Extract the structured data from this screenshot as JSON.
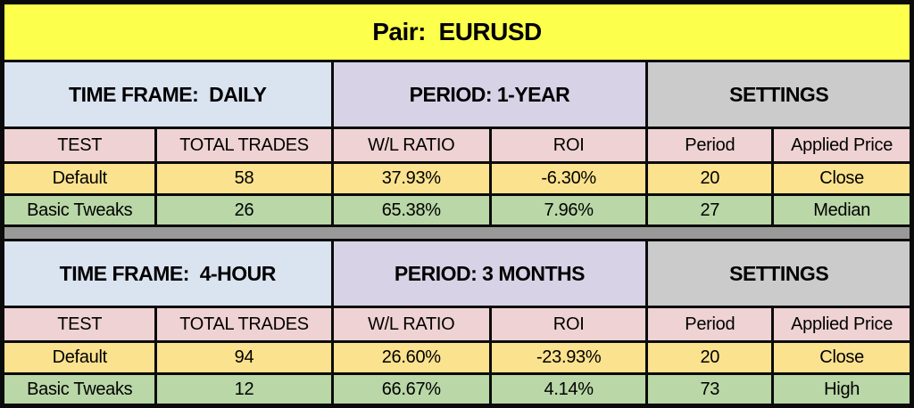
{
  "title": "Pair:  EURUSD",
  "colors": {
    "title_bg": "#fdff4d",
    "timeframe_bg": "#dae3f0",
    "period_bg": "#d8d2e6",
    "settings_bg": "#cbcbcb",
    "column_header_bg": "#efd2d3",
    "default_row_bg": "#fbe28e",
    "tweaks_row_bg": "#b9d7a7",
    "separator": "#999999",
    "border": "#0b0b0b"
  },
  "columns": [
    "TEST",
    "TOTAL TRADES",
    "W/L RATIO",
    "ROI",
    "Period",
    "Applied Price"
  ],
  "sections": [
    {
      "time_frame_label": "TIME FRAME:  DAILY",
      "period_label": "PERIOD: 1-YEAR",
      "settings_label": "SETTINGS",
      "rows": [
        [
          "Default",
          "58",
          "37.93%",
          "-6.30%",
          "20",
          "Close"
        ],
        [
          "Basic Tweaks",
          "26",
          "65.38%",
          "7.96%",
          "27",
          "Median"
        ]
      ]
    },
    {
      "time_frame_label": "TIME FRAME:  4-HOUR",
      "period_label": "PERIOD: 3 MONTHS",
      "settings_label": "SETTINGS",
      "rows": [
        [
          "Default",
          "94",
          "26.60%",
          "-23.93%",
          "20",
          "Close"
        ],
        [
          "Basic Tweaks",
          "12",
          "66.67%",
          "4.14%",
          "73",
          "High"
        ]
      ]
    }
  ],
  "chart_data": [
    {
      "type": "table",
      "title": "Pair: EURUSD — TIME FRAME: DAILY, PERIOD: 1-YEAR",
      "columns": [
        "TEST",
        "TOTAL TRADES",
        "W/L RATIO",
        "ROI",
        "Period",
        "Applied Price"
      ],
      "rows": [
        [
          "Default",
          58,
          "37.93%",
          "-6.30%",
          20,
          "Close"
        ],
        [
          "Basic Tweaks",
          26,
          "65.38%",
          "7.96%",
          27,
          "Median"
        ]
      ]
    },
    {
      "type": "table",
      "title": "Pair: EURUSD — TIME FRAME: 4-HOUR, PERIOD: 3 MONTHS",
      "columns": [
        "TEST",
        "TOTAL TRADES",
        "W/L RATIO",
        "ROI",
        "Period",
        "Applied Price"
      ],
      "rows": [
        [
          "Default",
          94,
          "26.60%",
          "-23.93%",
          20,
          "Close"
        ],
        [
          "Basic Tweaks",
          12,
          "66.67%",
          "4.14%",
          73,
          "High"
        ]
      ]
    }
  ]
}
